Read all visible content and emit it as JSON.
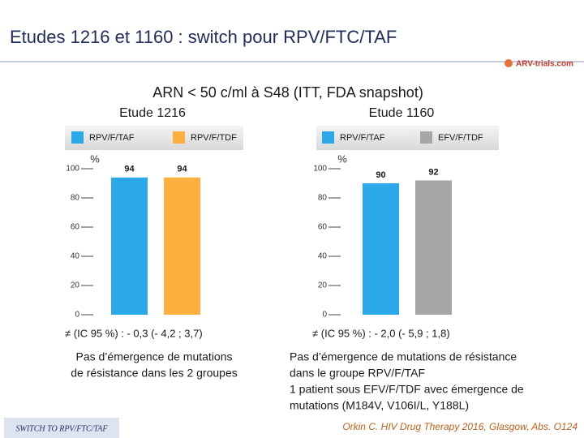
{
  "title": "Etudes 1216 et 1160 : switch pour RPV/FTC/TAF",
  "logo": "ARV-trials.com",
  "subtitle": "ARN < 50 c/ml à S48 (ITT, FDA snapshot)",
  "chart_data": [
    {
      "type": "bar",
      "title": "Etude 1216",
      "ylabel": "%",
      "series": [
        {
          "name": "RPV/F/TAF",
          "color": "#2aa8e8",
          "values": [
            94
          ]
        },
        {
          "name": "RPV/F/TDF",
          "color": "#fbb040",
          "values": [
            94
          ]
        }
      ],
      "ylim": [
        0,
        100
      ],
      "yticks": [
        0,
        20,
        40,
        60,
        80,
        100
      ],
      "annotation": "≠ (IC 95 %) : - 0,3 (- 4,2 ; 3,7)",
      "note": [
        "Pas d’émergence de mutations",
        "de résistance dans les 2 groupes"
      ]
    },
    {
      "type": "bar",
      "title": "Etude 1160",
      "ylabel": "%",
      "series": [
        {
          "name": "RPV/F/TAF",
          "color": "#2aa8e8",
          "values": [
            90
          ]
        },
        {
          "name": "EFV/F/TDF",
          "color": "#a6a6a6",
          "values": [
            92
          ]
        }
      ],
      "ylim": [
        0,
        100
      ],
      "yticks": [
        0,
        20,
        40,
        60,
        80,
        100
      ],
      "annotation": "≠ (IC 95 %) : - 2,0 (- 5,9 ; 1,8)",
      "note": [
        "Pas d’émergence de mutations de résistance",
        "dans le groupe RPV/F/TAF",
        "1 patient sous EFV/F/TDF avec émergence de",
        "mutations (M184V, V106I/L, Y188L)"
      ]
    }
  ],
  "footer": {
    "tag": "SWITCH TO RPV/FTC/TAF",
    "reference": "Orkin C. HIV Drug Therapy 2016, Glasgow, Abs. O124"
  }
}
